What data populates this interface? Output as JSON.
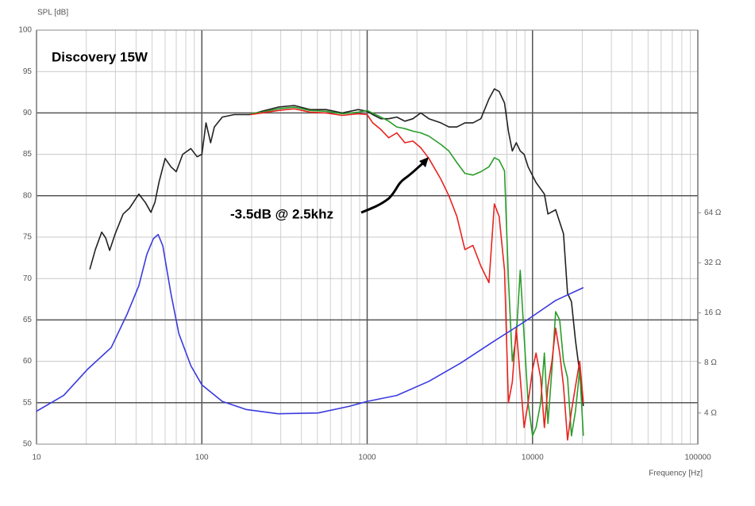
{
  "chart_data": {
    "type": "line",
    "title": "Discovery 15W",
    "annotation": "-3.5dB @ 2.5khz",
    "y_label": "SPL [dB]",
    "x_label": "Frequency [Hz]",
    "xlog": true,
    "xlim": [
      10,
      100000
    ],
    "xticks": [
      10,
      100,
      1000,
      10000,
      100000
    ],
    "xminorticks": [
      20,
      30,
      40,
      50,
      60,
      70,
      80,
      90,
      200,
      300,
      400,
      500,
      600,
      700,
      800,
      900,
      2000,
      3000,
      4000,
      5000,
      6000,
      7000,
      8000,
      9000,
      20000,
      30000,
      40000,
      50000,
      60000,
      70000,
      80000,
      90000
    ],
    "ylim": [
      50,
      100
    ],
    "yticks": [
      50,
      55,
      60,
      65,
      70,
      75,
      80,
      85,
      90,
      95,
      100
    ],
    "y_major_grid": [
      55,
      65,
      80,
      90
    ],
    "y2log": true,
    "y2lim": [
      2.6,
      800
    ],
    "y2ticks": [
      {
        "value": 4,
        "label": "4 Ω"
      },
      {
        "value": 8,
        "label": "8 Ω"
      },
      {
        "value": 16,
        "label": "16 Ω"
      },
      {
        "value": 32,
        "label": "32 Ω"
      },
      {
        "value": 64,
        "label": "64 Ω"
      }
    ],
    "grid": true,
    "series": [
      {
        "color": "#222222",
        "x": [
          21,
          22.7,
          24.8,
          26.2,
          27.7,
          29.9,
          33.4,
          36.5,
          41.6,
          45.5,
          49.2,
          52,
          55,
          60,
          65,
          70,
          76.6,
          85.8,
          93.6,
          100,
          106,
          113,
          119,
          133,
          157,
          196,
          231,
          289,
          362,
          452,
          565,
          706,
          883,
          1000,
          1081,
          1210,
          1350,
          1510,
          1690,
          1890,
          2110,
          2360,
          2790,
          3120,
          3490,
          3900,
          4360,
          4870,
          5450,
          5880,
          6280,
          6770,
          7150,
          7550,
          7980,
          8430,
          8900,
          9400,
          10500,
          11800,
          12400,
          13800,
          15400,
          16300,
          17200,
          18200,
          19300,
          20300
        ],
        "values": [
          71.1,
          73.5,
          75.6,
          74.9,
          73.4,
          75.4,
          77.8,
          78.5,
          80.2,
          79.2,
          78.0,
          79.2,
          81.6,
          84.5,
          83.5,
          82.9,
          85.0,
          85.7,
          84.7,
          85.0,
          88.8,
          86.4,
          88.3,
          89.5,
          89.8,
          89.8,
          90.2,
          90.7,
          90.9,
          90.4,
          90.4,
          90.0,
          90.4,
          90.2,
          89.8,
          89.3,
          89.3,
          89.5,
          89.0,
          89.3,
          90.0,
          89.3,
          88.8,
          88.3,
          88.3,
          88.8,
          88.8,
          89.3,
          91.7,
          92.9,
          92.6,
          91.2,
          87.8,
          85.4,
          86.4,
          85.4,
          85.0,
          83.5,
          81.6,
          80.2,
          77.8,
          78.3,
          75.4,
          68.2,
          67.2,
          62.5,
          58.6,
          54.6
        ]
      },
      {
        "color": "#2a9d2a",
        "x": [
          196,
          231,
          289,
          362,
          452,
          565,
          706,
          883,
          1000,
          1210,
          1350,
          1510,
          1690,
          1890,
          2110,
          2360,
          2790,
          3120,
          3490,
          3900,
          4360,
          4870,
          5450,
          5880,
          6280,
          6770,
          7150,
          7550,
          7980,
          8430,
          8900,
          9400,
          10000,
          10500,
          11200,
          11800,
          12400,
          13100,
          13800,
          14600,
          15400,
          16300,
          17200,
          18200,
          19300,
          20300
        ],
        "values": [
          89.9,
          90.1,
          90.5,
          90.7,
          90.3,
          90.2,
          89.9,
          90.1,
          90.3,
          89.5,
          89.0,
          88.3,
          88.1,
          87.8,
          87.6,
          87.2,
          86.2,
          85.4,
          84.0,
          82.7,
          82.5,
          82.9,
          83.5,
          84.6,
          84.3,
          83.0,
          70,
          60,
          63,
          71,
          63,
          55,
          51,
          52,
          55,
          61,
          52.5,
          59,
          66,
          65,
          60,
          58,
          51,
          54,
          59,
          51
        ]
      },
      {
        "color": "#e8231f",
        "x": [
          196,
          231,
          289,
          362,
          452,
          565,
          706,
          883,
          1000,
          1081,
          1210,
          1350,
          1510,
          1690,
          1890,
          2110,
          2360,
          2790,
          3120,
          3490,
          3900,
          4360,
          4870,
          5450,
          5880,
          6280,
          6770,
          7150,
          7550,
          7980,
          8430,
          8900,
          9400,
          10000,
          10500,
          11200,
          11800,
          12400,
          13100,
          13800,
          14600,
          15400,
          16300,
          17200,
          18200,
          19300,
          20300
        ],
        "values": [
          89.8,
          90.0,
          90.3,
          90.5,
          90.1,
          90.0,
          89.7,
          89.9,
          89.8,
          88.8,
          88.0,
          87.0,
          87.6,
          86.4,
          86.6,
          85.8,
          84.5,
          82.0,
          80.0,
          77.5,
          73.5,
          74,
          71.5,
          69.5,
          79,
          77.5,
          71,
          55,
          57.5,
          64,
          58,
          52,
          55,
          59,
          61,
          58,
          52,
          57,
          60,
          64,
          61,
          57,
          50.5,
          54,
          57,
          60,
          55
        ]
      },
      {
        "color": "#3a3ae0",
        "axis": "y2",
        "x": [
          10,
          14.6,
          20.3,
          28.3,
          35.4,
          41.6,
          46.5,
          50.9,
          54.4,
          58.1,
          65,
          72.6,
          85.8,
          100,
          133,
          185,
          289,
          505,
          786,
          1000,
          1510,
          2360,
          3690,
          5760,
          8900,
          13800,
          20300
        ],
        "values": [
          4.1,
          5.1,
          7.3,
          9.9,
          15.8,
          23.3,
          36.0,
          44.6,
          47.3,
          40.4,
          20.9,
          12.0,
          7.7,
          5.9,
          4.7,
          4.2,
          3.96,
          4.0,
          4.4,
          4.7,
          5.1,
          6.2,
          8.0,
          10.7,
          14.1,
          19.0,
          22.7
        ]
      }
    ]
  }
}
